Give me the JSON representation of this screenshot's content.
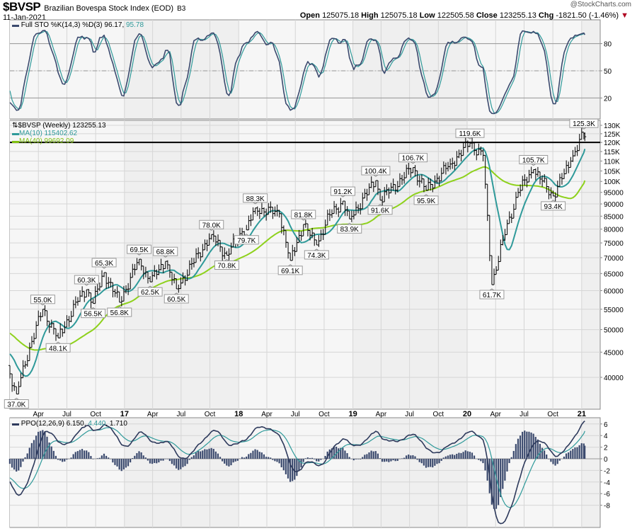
{
  "header": {
    "symbol": "$BVSP",
    "name": "Brazilian Bovespa Stock Index (EOD)",
    "exchange": "B3",
    "date": "11-Jan-2021",
    "copyright": "@StockCharts.com",
    "open_label": "Open",
    "open": "125075.18",
    "high_label": "High",
    "high": "125075.18",
    "low_label": "Low",
    "low": "122505.58",
    "close_label": "Close",
    "close": "123255.13",
    "chg_label": "Chg",
    "chg": "-1821.50 (-1.46%)"
  },
  "colors": {
    "price": "#000000",
    "ma10": "#2f9a9a",
    "ma40": "#8ed11c",
    "sto_k": "#3b4a6e",
    "sto_d": "#2f9a9a",
    "ppo": "#2e3a5c",
    "ppo_signal": "#2f9a9a",
    "ppo_hist": "#3b4a6e",
    "panel_bg": "#efefef",
    "grid": "#d6d6d6",
    "resistance": "#000000"
  },
  "chart_data": [
    {
      "panel": "stochastic",
      "type": "line",
      "legend": {
        "label": "Full STO %K(14,3) %D(3)",
        "k_value": "96.17",
        "d_value": "95.78"
      },
      "ylim": [
        0,
        100
      ],
      "y_ticks": [
        {
          "value": 80,
          "label": "80"
        },
        {
          "value": 50,
          "label": "50"
        },
        {
          "value": 20,
          "label": "20"
        }
      ],
      "reference_lines": [
        80,
        50,
        20
      ]
    },
    {
      "panel": "price",
      "type": "ohlc",
      "scale": "log",
      "ylim": [
        35000,
        132000
      ],
      "legend": {
        "price": "$BVSP (Weekly) 123255.13",
        "ma10": "MA(10) 115402.62",
        "ma40": "MA(40) 99692.09"
      },
      "resistance_line": 120000,
      "y_ticks": [
        {
          "value": 130000,
          "label": "130K"
        },
        {
          "value": 125000,
          "label": "125K"
        },
        {
          "value": 120000,
          "label": "120K"
        },
        {
          "value": 115000,
          "label": "115K"
        },
        {
          "value": 110000,
          "label": "110K"
        },
        {
          "value": 105000,
          "label": "105K"
        },
        {
          "value": 100000,
          "label": "100K"
        },
        {
          "value": 95000,
          "label": "95000"
        },
        {
          "value": 90000,
          "label": "90000"
        },
        {
          "value": 85000,
          "label": "85000"
        },
        {
          "value": 80000,
          "label": "80000"
        },
        {
          "value": 75000,
          "label": "75000"
        },
        {
          "value": 70000,
          "label": "70000"
        },
        {
          "value": 65000,
          "label": "65000"
        },
        {
          "value": 60000,
          "label": "60000"
        },
        {
          "value": 55000,
          "label": "55000"
        },
        {
          "value": 50000,
          "label": "50000"
        },
        {
          "value": 45000,
          "label": "45000"
        },
        {
          "value": 40000,
          "label": "40000"
        }
      ],
      "key_points": [
        {
          "date": "2016-01-22",
          "value": 37000,
          "label": "37.0K",
          "type": "low"
        },
        {
          "date": "2016-03-04",
          "value": 46000
        },
        {
          "date": "2016-04-15",
          "value": 55000,
          "label": "55.0K",
          "type": "high"
        },
        {
          "date": "2016-06-03",
          "value": 48100,
          "label": "48.1K",
          "type": "low"
        },
        {
          "date": "2016-08-12",
          "value": 58500
        },
        {
          "date": "2016-09-02",
          "value": 60300,
          "label": "60.3K",
          "type": "high"
        },
        {
          "date": "2016-09-23",
          "value": 56500,
          "label": "56.5K",
          "type": "low"
        },
        {
          "date": "2016-10-28",
          "value": 65300,
          "label": "65.3K",
          "type": "high"
        },
        {
          "date": "2016-12-16",
          "value": 56800,
          "label": "56.8K",
          "type": "low"
        },
        {
          "date": "2017-02-17",
          "value": 69500,
          "label": "69.5K",
          "type": "high"
        },
        {
          "date": "2017-03-24",
          "value": 62500,
          "label": "62.5K",
          "type": "low"
        },
        {
          "date": "2017-05-12",
          "value": 68800,
          "label": "68.8K",
          "type": "high"
        },
        {
          "date": "2017-06-16",
          "value": 60500,
          "label": "60.5K",
          "type": "low"
        },
        {
          "date": "2017-10-06",
          "value": 78000,
          "label": "78.0K",
          "type": "high"
        },
        {
          "date": "2017-11-24",
          "value": 70800,
          "label": "70.8K",
          "type": "low"
        },
        {
          "date": "2018-01-12",
          "value": 79000
        },
        {
          "date": "2018-01-26",
          "value": 79700,
          "label": "79.7K",
          "type": "low"
        },
        {
          "date": "2018-02-23",
          "value": 88300,
          "label": "88.3K",
          "type": "high"
        },
        {
          "date": "2018-05-11",
          "value": 86000
        },
        {
          "date": "2018-06-15",
          "value": 69100,
          "label": "69.1K",
          "type": "low"
        },
        {
          "date": "2018-07-27",
          "value": 81800,
          "label": "81.8K",
          "type": "high"
        },
        {
          "date": "2018-09-07",
          "value": 74300,
          "label": "74.3K",
          "type": "low"
        },
        {
          "date": "2018-10-19",
          "value": 85500
        },
        {
          "date": "2018-11-30",
          "value": 91200,
          "label": "91.2K",
          "type": "high"
        },
        {
          "date": "2018-12-21",
          "value": 83900,
          "label": "83.9K",
          "type": "low"
        },
        {
          "date": "2019-03-15",
          "value": 100400,
          "label": "100.4K",
          "type": "high"
        },
        {
          "date": "2019-03-29",
          "value": 91600,
          "label": "91.6K",
          "type": "low"
        },
        {
          "date": "2019-07-12",
          "value": 106700,
          "label": "106.7K",
          "type": "high"
        },
        {
          "date": "2019-08-23",
          "value": 95900,
          "label": "95.9K",
          "type": "low"
        },
        {
          "date": "2019-11-08",
          "value": 108500
        },
        {
          "date": "2020-01-10",
          "value": 119600,
          "label": "119.6K",
          "type": "high"
        },
        {
          "date": "2020-02-21",
          "value": 113000
        },
        {
          "date": "2020-03-20",
          "value": 61700,
          "label": "61.7K",
          "type": "low"
        },
        {
          "date": "2020-04-24",
          "value": 76000
        },
        {
          "date": "2020-06-12",
          "value": 95000
        },
        {
          "date": "2020-07-31",
          "value": 105700,
          "label": "105.7K",
          "type": "high"
        },
        {
          "date": "2020-10-02",
          "value": 93400,
          "label": "93.4K",
          "type": "low"
        },
        {
          "date": "2020-11-27",
          "value": 110000
        },
        {
          "date": "2021-01-08",
          "value": 125300,
          "label": "125.3K",
          "type": "high"
        },
        {
          "date": "2021-01-11",
          "value": 123255.13
        }
      ],
      "moving_averages": [
        {
          "period": 10,
          "name": "MA(10)"
        },
        {
          "period": 40,
          "name": "MA(40)"
        }
      ]
    },
    {
      "panel": "ppo",
      "type": "line+histogram",
      "legend": {
        "label": "PPO(12,26,9)",
        "ppo": "6.150",
        "signal": "4.440",
        "hist": "1.710"
      },
      "ylim": [
        -9.5,
        7
      ],
      "y_ticks": [
        {
          "value": 6,
          "label": "6"
        },
        {
          "value": 4,
          "label": "4"
        },
        {
          "value": 2,
          "label": "2"
        },
        {
          "value": 0,
          "label": "0"
        },
        {
          "value": -2,
          "label": "-2"
        },
        {
          "value": -4,
          "label": "-4"
        },
        {
          "value": -6,
          "label": "-6"
        },
        {
          "value": -8,
          "label": "-8"
        }
      ]
    }
  ],
  "x_ticks": [
    {
      "date": "2016-04-01",
      "label": "Apr"
    },
    {
      "date": "2016-07-01",
      "label": "Jul"
    },
    {
      "date": "2016-10-01",
      "label": "Oct"
    },
    {
      "date": "2017-01-01",
      "label": "17",
      "year": true
    },
    {
      "date": "2017-04-01",
      "label": "Apr"
    },
    {
      "date": "2017-07-01",
      "label": "Jul"
    },
    {
      "date": "2017-10-01",
      "label": "Oct"
    },
    {
      "date": "2018-01-01",
      "label": "18",
      "year": true
    },
    {
      "date": "2018-04-01",
      "label": "Apr"
    },
    {
      "date": "2018-07-01",
      "label": "Jul"
    },
    {
      "date": "2018-10-01",
      "label": "Oct"
    },
    {
      "date": "2019-01-01",
      "label": "19",
      "year": true
    },
    {
      "date": "2019-04-01",
      "label": "Apr"
    },
    {
      "date": "2019-07-01",
      "label": "Jul"
    },
    {
      "date": "2019-10-01",
      "label": "Oct"
    },
    {
      "date": "2020-01-01",
      "label": "20",
      "year": true
    },
    {
      "date": "2020-04-01",
      "label": "Apr"
    },
    {
      "date": "2020-07-01",
      "label": "Jul"
    },
    {
      "date": "2020-10-01",
      "label": "Oct"
    },
    {
      "date": "2021-01-01",
      "label": "21",
      "year": true
    }
  ]
}
